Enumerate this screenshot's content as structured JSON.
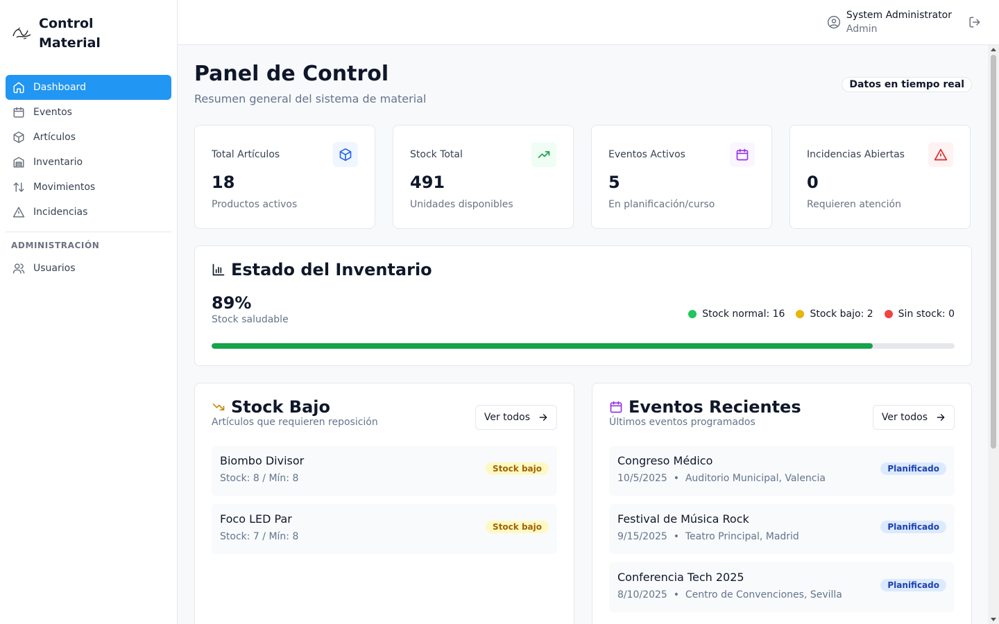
{
  "brand": {
    "title": "Control Material",
    "logo_icon": "brand-logo-icon"
  },
  "sidebar": {
    "items": [
      {
        "label": "Dashboard",
        "icon": "home-icon",
        "active": true
      },
      {
        "label": "Eventos",
        "icon": "calendar-icon"
      },
      {
        "label": "Artículos",
        "icon": "box-icon"
      },
      {
        "label": "Inventario",
        "icon": "warehouse-icon"
      },
      {
        "label": "Movimientos",
        "icon": "arrows-up-down-icon"
      },
      {
        "label": "Incidencias",
        "icon": "warning-icon"
      }
    ],
    "admin_section": "ADMINISTRACIÓN",
    "admin_items": [
      {
        "label": "Usuarios",
        "icon": "users-icon"
      }
    ]
  },
  "header": {
    "user_name": "System Administrator",
    "user_role": "Admin"
  },
  "page": {
    "title": "Panel de Control",
    "subtitle": "Resumen general del sistema de material",
    "live_badge": "Datos en tiempo real"
  },
  "stats": [
    {
      "label": "Total Artículos",
      "value": "18",
      "desc": "Productos activos",
      "icon": "box-icon",
      "color": "#2563eb",
      "bg": "#eff6ff"
    },
    {
      "label": "Stock Total",
      "value": "491",
      "desc": "Unidades disponibles",
      "icon": "trending-up-icon",
      "color": "#16a34a",
      "bg": "#f0fdf4"
    },
    {
      "label": "Eventos Activos",
      "value": "5",
      "desc": "En planificación/curso",
      "icon": "calendar-icon",
      "color": "#9333ea",
      "bg": "#faf5ff"
    },
    {
      "label": "Incidencias Abiertas",
      "value": "0",
      "desc": "Requieren atención",
      "icon": "warning-icon",
      "color": "#dc2626",
      "bg": "#fef2f2"
    }
  ],
  "inventory": {
    "title": "Estado del Inventario",
    "percent": "89%",
    "percent_value": 89,
    "percent_label": "Stock saludable",
    "legend": [
      {
        "label": "Stock normal: 16",
        "color": "#22c55e"
      },
      {
        "label": "Stock bajo: 2",
        "color": "#eab308"
      },
      {
        "label": "Sin stock: 0",
        "color": "#ef4444"
      }
    ]
  },
  "low_stock": {
    "title": "Stock Bajo",
    "subtitle": "Artículos que requieren reposición",
    "button": "Ver todos",
    "items": [
      {
        "name": "Biombo Divisor",
        "meta": "Stock: 8 / Mín: 8",
        "badge": "Stock bajo"
      },
      {
        "name": "Foco LED Par",
        "meta": "Stock: 7 / Mín: 8",
        "badge": "Stock bajo"
      }
    ]
  },
  "recent_events": {
    "title": "Eventos Recientes",
    "subtitle": "Últimos eventos programados",
    "button": "Ver todos",
    "items": [
      {
        "name": "Congreso Médico",
        "date": "10/5/2025",
        "place": "Auditorio Municipal, Valencia",
        "badge": "Planificado"
      },
      {
        "name": "Festival de Música Rock",
        "date": "9/15/2025",
        "place": "Teatro Principal, Madrid",
        "badge": "Planificado"
      },
      {
        "name": "Conferencia Tech 2025",
        "date": "8/10/2025",
        "place": "Centro de Convenciones, Sevilla",
        "badge": "Planificado"
      }
    ]
  }
}
